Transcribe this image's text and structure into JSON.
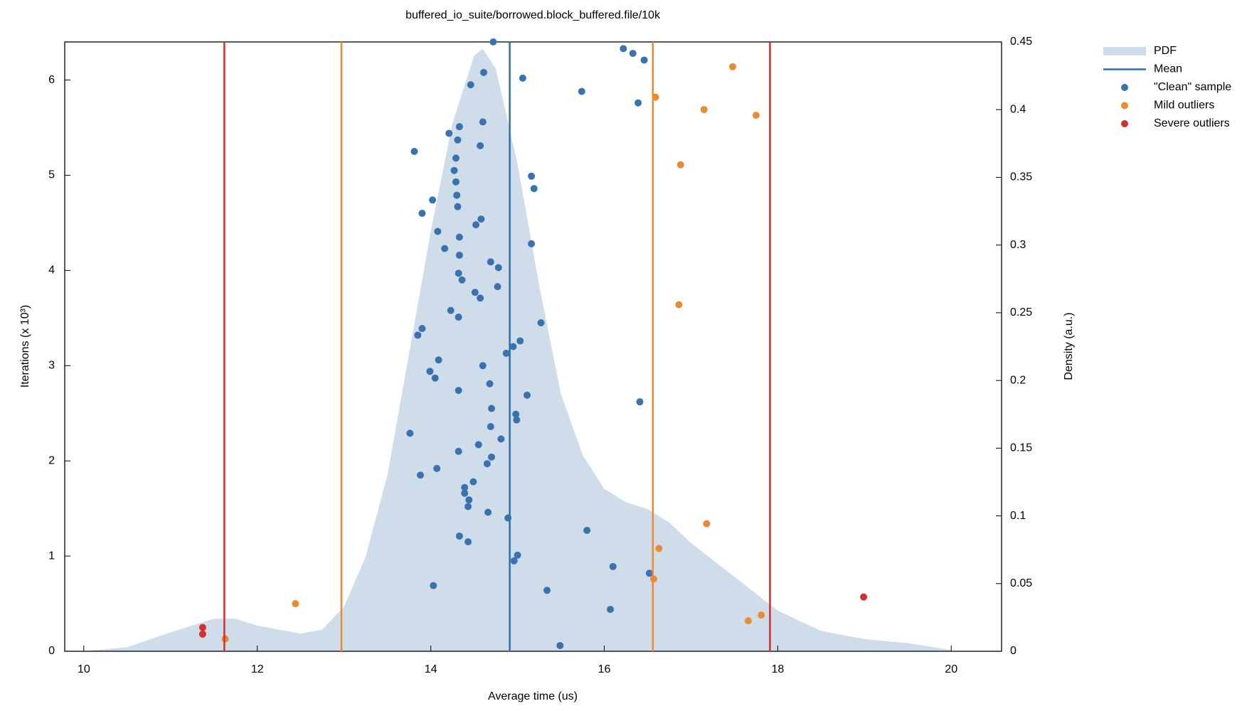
{
  "chart_data": {
    "type": "scatter",
    "title": "buffered_io_suite/borrowed.block_buffered.file/10k",
    "xlabel": "Average time (us)",
    "ylabel": "Iterations (x 10³)",
    "y2label": "Density (a.u.)",
    "xlim": [
      9.78,
      20.58
    ],
    "ylim": [
      0,
      6.4
    ],
    "y2lim": [
      0,
      0.45
    ],
    "xticks": [
      10,
      12,
      14,
      16,
      18,
      20
    ],
    "yticks": [
      0,
      1,
      2,
      3,
      4,
      5,
      6
    ],
    "y2ticks": [
      0,
      0.05,
      0.1,
      0.15,
      0.2,
      0.25,
      0.3,
      0.35,
      0.4,
      0.45
    ],
    "legend": "outside-right",
    "series": [
      {
        "name": "PDF",
        "type": "area",
        "axis": "y2",
        "color": "#cfdcea",
        "x": [
          10,
          10.5,
          11,
          11.5,
          11.75,
          12,
          12.5,
          12.75,
          13,
          13.25,
          13.5,
          13.75,
          14,
          14.25,
          14.5,
          14.6,
          14.75,
          15,
          15.25,
          15.5,
          15.75,
          16,
          16.25,
          16.5,
          16.75,
          17,
          17.5,
          18,
          18.5,
          19,
          19.5,
          20
        ],
        "values": [
          0,
          0.003,
          0.014,
          0.024,
          0.024,
          0.019,
          0.013,
          0.016,
          0.033,
          0.07,
          0.13,
          0.22,
          0.31,
          0.39,
          0.44,
          0.445,
          0.43,
          0.36,
          0.27,
          0.19,
          0.145,
          0.12,
          0.11,
          0.105,
          0.095,
          0.08,
          0.055,
          0.03,
          0.015,
          0.009,
          0.006,
          0.001
        ]
      },
      {
        "name": "Mean",
        "type": "vline",
        "color": "#2f6ead",
        "value": 14.91
      },
      {
        "name": "\"Clean\" sample",
        "type": "scatter",
        "color": "#3a72ae",
        "x": [
          14.72,
          16.22,
          16.33,
          16.46,
          15.06,
          14.61,
          14.46,
          15.74,
          16.39,
          14.33,
          14.21,
          14.31,
          14.6,
          14.57,
          13.81,
          14.29,
          14.27,
          14.29,
          15.16,
          15.19,
          14.3,
          14.02,
          14.31,
          13.9,
          14.58,
          14.52,
          14.08,
          14.33,
          15.16,
          14.16,
          14.33,
          14.69,
          14.78,
          14.32,
          14.36,
          14.77,
          14.51,
          14.57,
          14.23,
          14.32,
          15.27,
          13.9,
          13.85,
          15.03,
          14.95,
          14.87,
          14.09,
          14.6,
          13.99,
          14.05,
          14.68,
          14.32,
          15.11,
          16.41,
          14.7,
          14.98,
          14.99,
          14.69,
          13.76,
          14.81,
          14.55,
          14.32,
          14.7,
          14.65,
          14.07,
          13.88,
          14.49,
          14.39,
          14.39,
          14.44,
          14.43,
          14.66,
          14.89,
          15.8,
          14.33,
          14.43,
          15,
          14.96,
          16.1,
          16.52,
          14.03,
          15.34,
          16.07,
          15.49
        ],
        "values": [
          6.4,
          6.33,
          6.28,
          6.21,
          6.02,
          6.08,
          5.95,
          5.88,
          5.76,
          5.51,
          5.44,
          5.37,
          5.56,
          5.31,
          5.25,
          5.18,
          5.05,
          4.93,
          4.99,
          4.86,
          4.79,
          4.74,
          4.67,
          4.6,
          4.54,
          4.48,
          4.41,
          4.35,
          4.28,
          4.23,
          4.16,
          4.09,
          4.03,
          3.97,
          3.9,
          3.83,
          3.77,
          3.71,
          3.58,
          3.51,
          3.45,
          3.39,
          3.32,
          3.26,
          3.2,
          3.13,
          3.06,
          3,
          2.94,
          2.87,
          2.81,
          2.74,
          2.69,
          2.62,
          2.55,
          2.49,
          2.43,
          2.36,
          2.29,
          2.23,
          2.17,
          2.1,
          2.04,
          1.97,
          1.92,
          1.85,
          1.78,
          1.72,
          1.66,
          1.59,
          1.52,
          1.46,
          1.4,
          1.27,
          1.21,
          1.15,
          1.01,
          0.95,
          0.89,
          0.82,
          0.69,
          0.64,
          0.44,
          0.06
        ]
      },
      {
        "name": "Mild outliers",
        "type": "scatter",
        "color": "#ec8a32",
        "x": [
          17.48,
          16.59,
          17.15,
          17.75,
          16.88,
          16.86,
          17.18,
          16.63,
          16.57,
          12.44,
          17.81,
          17.66,
          11.63
        ],
        "values": [
          6.14,
          5.82,
          5.69,
          5.63,
          5.11,
          3.64,
          1.34,
          1.08,
          0.76,
          0.5,
          0.38,
          0.32,
          0.13
        ],
        "thresholds": [
          12.97,
          16.56
        ]
      },
      {
        "name": "Severe outliers",
        "type": "scatter",
        "color": "#d62d2d",
        "x": [
          11.37,
          11.37,
          18.99
        ],
        "values": [
          0.25,
          0.18,
          0.57
        ],
        "thresholds": [
          11.62,
          17.91
        ]
      }
    ]
  }
}
